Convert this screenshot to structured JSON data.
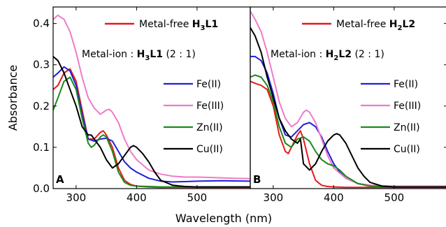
{
  "colors": {
    "metal_free": "#e41a1c",
    "fe2": "#1f1fd9",
    "fe3": "#f07ac8",
    "zn2": "#1a8a1a",
    "cu2": "#000000"
  },
  "chart_data": [
    {
      "type": "line",
      "panel_label": "A",
      "xlim": [
        262,
        588
      ],
      "ylim": [
        0,
        0.44
      ],
      "xticks": [
        300,
        400,
        500
      ],
      "yticks": [
        0.0,
        0.1,
        0.2,
        0.3,
        0.4
      ],
      "ytick_labels": [
        "0.0",
        "0.1",
        "0.2",
        "0.3",
        "0.4"
      ],
      "xlabel": "Wavelength (nm)",
      "ylabel": "Absorbance",
      "legend_top": {
        "prefix": "Metal-free ",
        "formula": "H",
        "sub1": "3",
        "mid": "L1",
        "sub2": "",
        "suffix": ""
      },
      "legend_ratio": {
        "prefix": "Metal-ion : ",
        "formula": "H",
        "sub1": "3",
        "mid": "L1",
        "sub2": "",
        "suffix": " (2 : 1)"
      },
      "series": [
        {
          "name": "Metal-free",
          "color_key": "metal_free",
          "x": [
            262,
            270,
            280,
            290,
            300,
            310,
            320,
            330,
            340,
            345,
            350,
            360,
            370,
            380,
            390,
            400,
            420,
            440,
            460,
            500,
            540,
            588
          ],
          "y": [
            0.24,
            0.25,
            0.28,
            0.29,
            0.26,
            0.19,
            0.12,
            0.12,
            0.136,
            0.14,
            0.13,
            0.1,
            0.05,
            0.02,
            0.01,
            0.006,
            0.004,
            0.003,
            0.003,
            0.003,
            0.003,
            0.003
          ]
        },
        {
          "name": "Fe(II)",
          "color_key": "fe2",
          "x": [
            262,
            270,
            280,
            290,
            300,
            310,
            320,
            330,
            340,
            350,
            360,
            370,
            380,
            390,
            400,
            420,
            440,
            460,
            480,
            500,
            540,
            588
          ],
          "y": [
            0.27,
            0.28,
            0.295,
            0.285,
            0.25,
            0.18,
            0.12,
            0.115,
            0.12,
            0.122,
            0.115,
            0.09,
            0.065,
            0.05,
            0.04,
            0.025,
            0.018,
            0.016,
            0.017,
            0.018,
            0.019,
            0.018
          ]
        },
        {
          "name": "Fe(III)",
          "color_key": "fe3",
          "x": [
            262,
            270,
            280,
            290,
            300,
            310,
            320,
            330,
            340,
            350,
            355,
            360,
            370,
            380,
            390,
            400,
            420,
            440,
            460,
            480,
            500,
            520,
            540,
            560,
            588
          ],
          "y": [
            0.41,
            0.42,
            0.41,
            0.38,
            0.33,
            0.27,
            0.22,
            0.195,
            0.18,
            0.19,
            0.192,
            0.185,
            0.16,
            0.12,
            0.09,
            0.07,
            0.045,
            0.035,
            0.03,
            0.028,
            0.028,
            0.027,
            0.026,
            0.025,
            0.024
          ]
        },
        {
          "name": "Zn(II)",
          "color_key": "zn2",
          "x": [
            262,
            270,
            280,
            290,
            300,
            310,
            320,
            325,
            330,
            340,
            345,
            350,
            360,
            370,
            380,
            390,
            400,
            420,
            440,
            460,
            500,
            540,
            588
          ],
          "y": [
            0.19,
            0.22,
            0.26,
            0.27,
            0.24,
            0.17,
            0.11,
            0.1,
            0.105,
            0.125,
            0.13,
            0.125,
            0.09,
            0.04,
            0.015,
            0.008,
            0.006,
            0.005,
            0.004,
            0.004,
            0.004,
            0.004,
            0.004
          ]
        },
        {
          "name": "Cu(II)",
          "color_key": "cu2",
          "x": [
            262,
            270,
            280,
            290,
            300,
            310,
            320,
            325,
            330,
            340,
            350,
            360,
            370,
            380,
            390,
            395,
            400,
            410,
            420,
            430,
            440,
            460,
            480,
            500,
            540,
            588
          ],
          "y": [
            0.32,
            0.31,
            0.28,
            0.24,
            0.2,
            0.15,
            0.13,
            0.13,
            0.12,
            0.1,
            0.07,
            0.05,
            0.06,
            0.08,
            0.1,
            0.104,
            0.1,
            0.085,
            0.065,
            0.04,
            0.02,
            0.008,
            0.005,
            0.004,
            0.004,
            0.004
          ]
        }
      ]
    },
    {
      "type": "line",
      "panel_label": "B",
      "xlim": [
        262,
        588
      ],
      "ylim": [
        0,
        0.44
      ],
      "xticks": [
        300,
        400,
        500
      ],
      "legend_top": {
        "prefix": "Metal-free ",
        "formula": "H",
        "sub1": "2",
        "mid": "L2",
        "sub2": "",
        "suffix": ""
      },
      "legend_ratio": {
        "prefix": "Metal-ion : ",
        "formula": "H",
        "sub1": "2",
        "mid": "L2",
        "sub2": "",
        "suffix": " (2 : 1)"
      },
      "series": [
        {
          "name": "Metal-free",
          "color_key": "metal_free",
          "x": [
            262,
            270,
            280,
            290,
            300,
            310,
            320,
            325,
            330,
            340,
            345,
            350,
            360,
            370,
            380,
            390,
            400,
            420,
            440,
            500,
            588
          ],
          "y": [
            0.26,
            0.255,
            0.25,
            0.24,
            0.2,
            0.13,
            0.09,
            0.085,
            0.1,
            0.13,
            0.14,
            0.12,
            0.06,
            0.02,
            0.008,
            0.005,
            0.004,
            0.003,
            0.003,
            0.003,
            0.003
          ]
        },
        {
          "name": "Fe(II)",
          "color_key": "fe2",
          "x": [
            262,
            270,
            280,
            290,
            300,
            310,
            320,
            330,
            340,
            350,
            360,
            370,
            380,
            390,
            400,
            410,
            420,
            440,
            460,
            480,
            500,
            540,
            588
          ],
          "y": [
            0.32,
            0.32,
            0.31,
            0.28,
            0.23,
            0.17,
            0.13,
            0.125,
            0.14,
            0.155,
            0.16,
            0.15,
            0.125,
            0.09,
            0.06,
            0.04,
            0.025,
            0.012,
            0.008,
            0.006,
            0.006,
            0.006,
            0.006
          ]
        },
        {
          "name": "Fe(III)",
          "color_key": "fe3",
          "x": [
            262,
            270,
            280,
            290,
            300,
            310,
            320,
            330,
            340,
            350,
            355,
            360,
            370,
            380,
            390,
            400,
            420,
            440,
            460,
            480,
            500,
            540,
            588
          ],
          "y": [
            0.43,
            0.41,
            0.38,
            0.33,
            0.27,
            0.21,
            0.17,
            0.15,
            0.16,
            0.185,
            0.19,
            0.185,
            0.16,
            0.12,
            0.08,
            0.05,
            0.025,
            0.012,
            0.008,
            0.007,
            0.006,
            0.006,
            0.006
          ]
        },
        {
          "name": "Zn(II)",
          "color_key": "zn2",
          "x": [
            262,
            270,
            280,
            290,
            300,
            310,
            320,
            330,
            340,
            350,
            360,
            370,
            380,
            390,
            400,
            410,
            420,
            440,
            460,
            500,
            588
          ],
          "y": [
            0.27,
            0.275,
            0.27,
            0.25,
            0.21,
            0.15,
            0.11,
            0.1,
            0.12,
            0.125,
            0.115,
            0.09,
            0.07,
            0.06,
            0.055,
            0.045,
            0.03,
            0.012,
            0.006,
            0.004,
            0.004
          ]
        },
        {
          "name": "Cu(II)",
          "color_key": "cu2",
          "x": [
            262,
            270,
            280,
            290,
            300,
            310,
            320,
            325,
            330,
            340,
            345,
            350,
            360,
            370,
            380,
            390,
            400,
            405,
            410,
            420,
            430,
            440,
            450,
            460,
            480,
            500,
            540,
            588
          ],
          "y": [
            0.39,
            0.37,
            0.33,
            0.27,
            0.22,
            0.17,
            0.14,
            0.13,
            0.12,
            0.11,
            0.12,
            0.06,
            0.045,
            0.06,
            0.09,
            0.115,
            0.13,
            0.133,
            0.13,
            0.11,
            0.08,
            0.05,
            0.03,
            0.015,
            0.006,
            0.004,
            0.004,
            0.004
          ]
        }
      ]
    }
  ]
}
